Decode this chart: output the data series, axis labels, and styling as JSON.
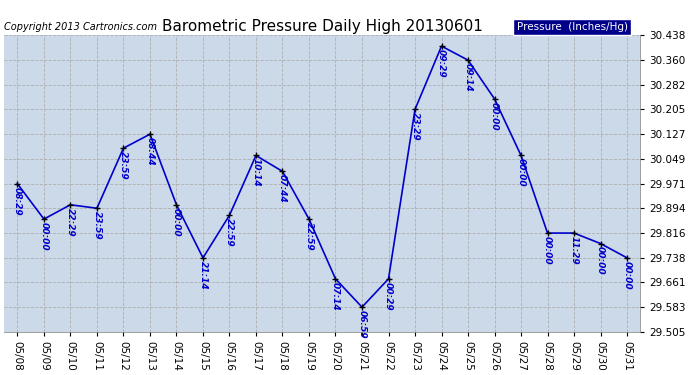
{
  "title": "Barometric Pressure Daily High 20130601",
  "copyright_text": "Copyright 2013 Cartronics.com",
  "legend_label": "Pressure  (Inches/Hg)",
  "bg_color": "#ccd9e8",
  "line_color": "#0000cc",
  "marker_color": "#000000",
  "text_color": "#0000cc",
  "grid_color": "#aaaaaa",
  "ylim": [
    29.505,
    30.438
  ],
  "yticks": [
    29.505,
    29.583,
    29.661,
    29.738,
    29.816,
    29.894,
    29.971,
    30.049,
    30.127,
    30.205,
    30.282,
    30.36,
    30.438
  ],
  "dates": [
    "05/08",
    "05/09",
    "05/10",
    "05/11",
    "05/12",
    "05/13",
    "05/14",
    "05/15",
    "05/16",
    "05/17",
    "05/18",
    "05/19",
    "05/20",
    "05/21",
    "05/22",
    "05/23",
    "05/24",
    "05/25",
    "05/26",
    "05/27",
    "05/28",
    "05/29",
    "05/30",
    "05/31"
  ],
  "values": [
    29.971,
    29.86,
    29.905,
    29.894,
    30.083,
    30.127,
    29.905,
    29.738,
    29.872,
    30.06,
    30.01,
    29.86,
    29.672,
    29.583,
    29.672,
    30.205,
    30.404,
    30.36,
    30.238,
    30.06,
    29.816,
    29.816,
    29.783,
    29.738
  ],
  "point_labels": [
    "08:29",
    "00:00",
    "22:29",
    "23:59",
    "23:59",
    "08:44",
    "00:00",
    "21:14",
    "22:59",
    "10:14",
    "07:44",
    "22:59",
    "07:14",
    "06:59",
    "00:29",
    "23:29",
    "09:29",
    "09:14",
    "00:00",
    "00:00",
    "00:00",
    "11:29",
    "00:00",
    "00:00"
  ],
  "label_fontsize": 6.5,
  "tick_fontsize": 7.5,
  "title_fontsize": 11,
  "copyright_fontsize": 7
}
